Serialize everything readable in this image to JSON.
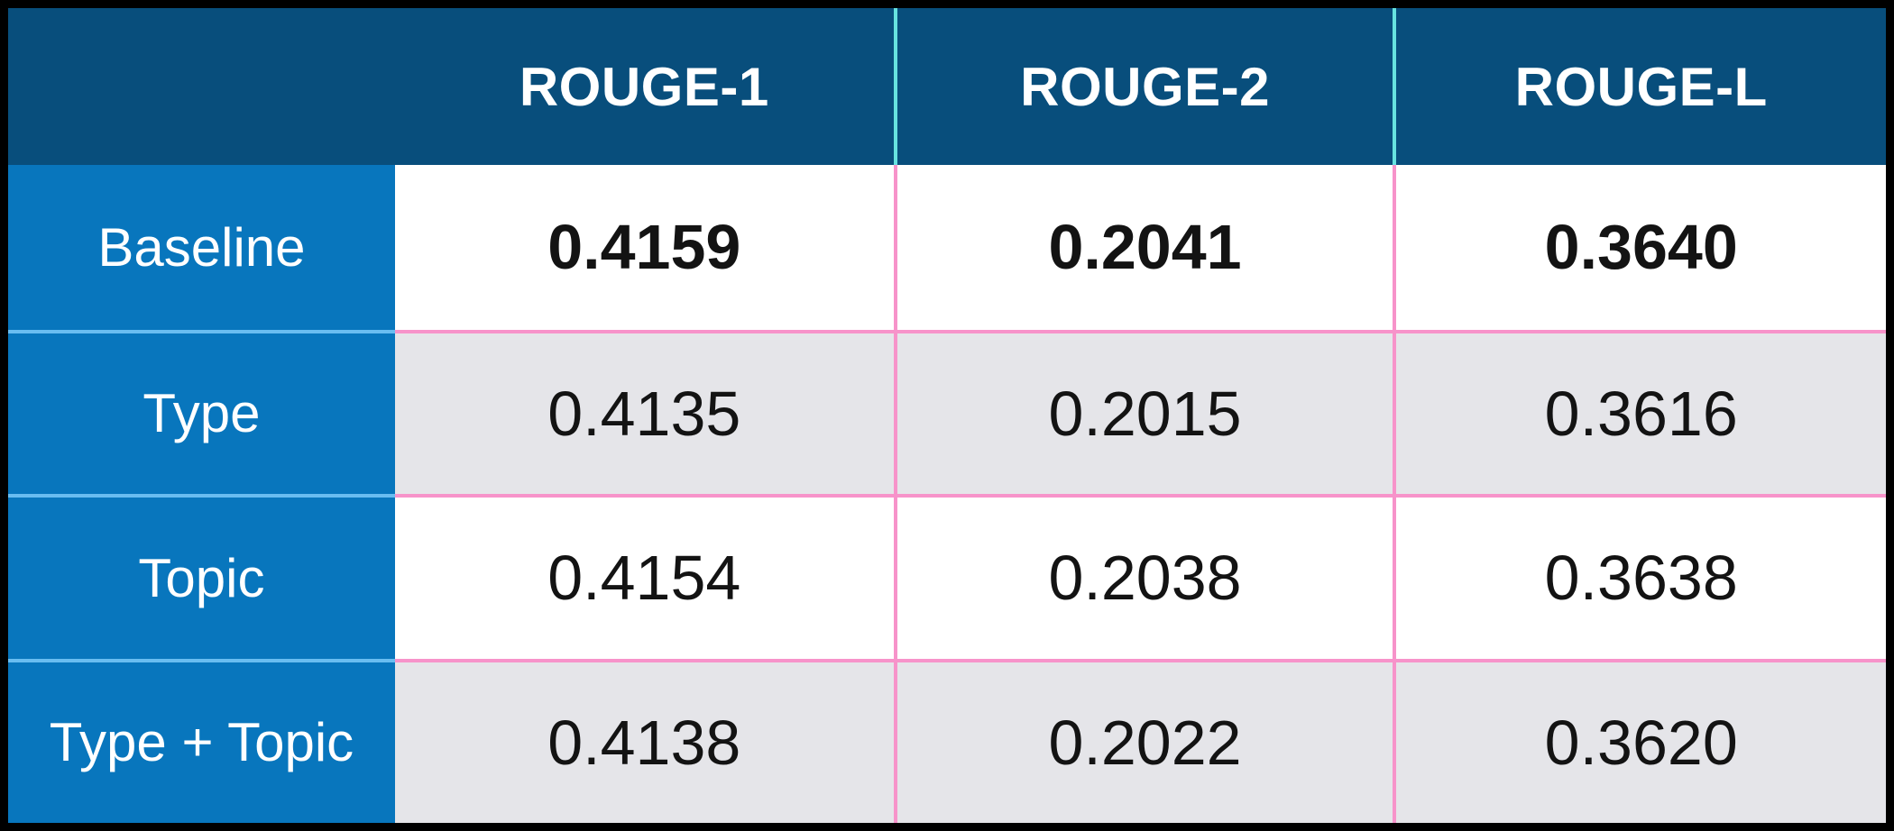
{
  "table": {
    "corner_label": "",
    "columns": [
      {
        "label": "ROUGE-1"
      },
      {
        "label": "ROUGE-2"
      },
      {
        "label": "ROUGE-L"
      }
    ],
    "rows": [
      {
        "label": "Baseline",
        "values": [
          "0.4159",
          "0.2041",
          "0.3640"
        ],
        "emphasis": true
      },
      {
        "label": "Type",
        "values": [
          "0.4135",
          "0.2015",
          "0.3616"
        ],
        "emphasis": false
      },
      {
        "label": "Topic",
        "values": [
          "0.4154",
          "0.2038",
          "0.3638"
        ],
        "emphasis": false
      },
      {
        "label": "Type + Topic",
        "values": [
          "0.4138",
          "0.2022",
          "0.3620"
        ],
        "emphasis": false
      }
    ]
  },
  "chart_data": {
    "type": "table",
    "columns": [
      "ROUGE-1",
      "ROUGE-2",
      "ROUGE-L"
    ],
    "row_labels": [
      "Baseline",
      "Type",
      "Topic",
      "Type + Topic"
    ],
    "series": [
      {
        "name": "ROUGE-1",
        "values": [
          0.4159,
          0.4135,
          0.4154,
          0.4138
        ]
      },
      {
        "name": "ROUGE-2",
        "values": [
          0.2041,
          0.2015,
          0.2038,
          0.2022
        ]
      },
      {
        "name": "ROUGE-L",
        "values": [
          0.364,
          0.3616,
          0.3638,
          0.362
        ]
      }
    ],
    "emphasized_row": "Baseline",
    "legend_position": "none",
    "grid": "on"
  },
  "colors": {
    "header_bg": "#084e7c",
    "label_column_bg": "#0876bd",
    "header_divider_cyan": "#67e3e0",
    "data_divider_pink": "#f793ca",
    "label_divider_light_blue": "#69bdf1",
    "row_bg_white": "#ffffff",
    "row_bg_gray": "#e5e5e9",
    "outer_border": "#000000",
    "header_text": "#ffffff",
    "value_text": "#131313"
  }
}
